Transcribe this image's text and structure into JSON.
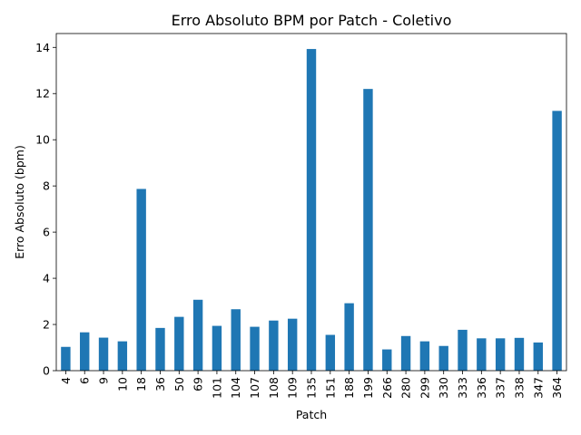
{
  "chart_data": {
    "type": "bar",
    "title": "Erro Absoluto BPM por Patch - Coletivo",
    "xlabel": "Patch",
    "ylabel": "Erro Absoluto (bpm)",
    "categories": [
      "4",
      "6",
      "9",
      "10",
      "18",
      "36",
      "50",
      "69",
      "101",
      "104",
      "107",
      "108",
      "109",
      "135",
      "151",
      "188",
      "199",
      "266",
      "280",
      "299",
      "330",
      "333",
      "336",
      "337",
      "338",
      "347",
      "364"
    ],
    "values": [
      1.03,
      1.66,
      1.43,
      1.27,
      7.87,
      1.85,
      2.33,
      3.07,
      1.94,
      2.66,
      1.9,
      2.17,
      2.25,
      13.93,
      1.55,
      2.92,
      12.2,
      0.92,
      1.5,
      1.27,
      1.07,
      1.77,
      1.4,
      1.4,
      1.42,
      1.22,
      11.25
    ],
    "yticks": [
      0,
      2,
      4,
      6,
      8,
      10,
      12,
      14
    ],
    "ylim": [
      0,
      14.6
    ],
    "grid": false,
    "bar_color": "#1f77b4"
  }
}
